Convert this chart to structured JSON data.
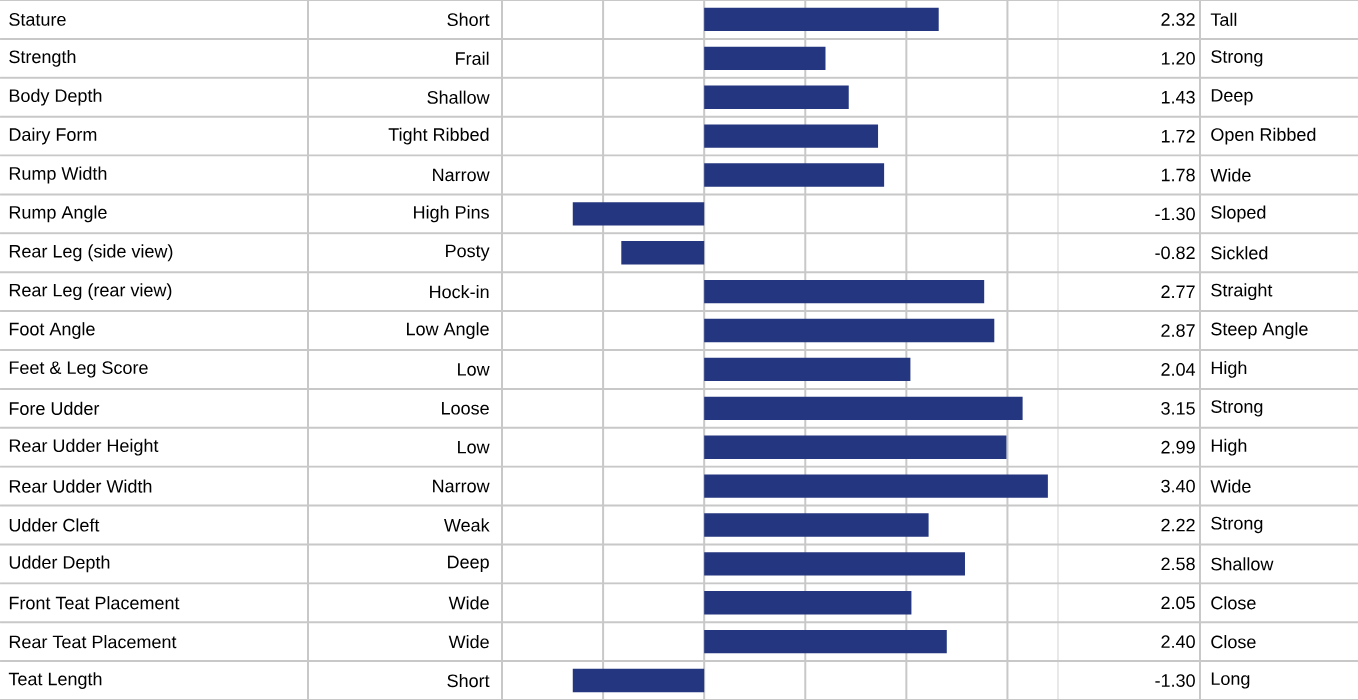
{
  "chart_data": {
    "type": "bar",
    "orientation": "horizontal",
    "color": "#24367f",
    "categories": [
      "Stature",
      "Strength",
      "Body Depth",
      "Dairy Form",
      "Rump Width",
      "Rump Angle",
      "Rear Leg (side view)",
      "Rear Leg (rear view)",
      "Foot Angle",
      "Feet & Leg Score",
      "Fore Udder",
      "Rear Udder Height",
      "Rear Udder Width",
      "Udder Cleft",
      "Udder Depth",
      "Front Teat Placement",
      "Rear Teat Placement",
      "Teat Length"
    ],
    "values": [
      2.32,
      1.2,
      1.43,
      1.72,
      1.78,
      -1.3,
      -0.82,
      2.77,
      2.87,
      2.04,
      3.15,
      2.99,
      3.4,
      2.22,
      2.58,
      2.05,
      2.4,
      -1.3
    ],
    "value_labels": [
      "2.32",
      "1.20",
      "1.43",
      "1.72",
      "1.78",
      "-1.30",
      "-0.82",
      "2.77",
      "2.87",
      "2.04",
      "3.15",
      "2.99",
      "3.40",
      "2.22",
      "2.58",
      "2.05",
      "2.40",
      "-1.30"
    ],
    "annotations": [
      "Short",
      "Tall",
      "Frail",
      "Strong",
      "Shallow",
      "Deep",
      "Tight Ribbed",
      "Open Ribbed",
      "Narrow",
      "Wide",
      "High Pins",
      "Sloped",
      "Posty",
      "Sickled",
      "Hock-in",
      "Straight",
      "Low Angle",
      "Steep Angle",
      "Low",
      "High",
      "Loose",
      "Strong",
      "Low",
      "High",
      "Narrow",
      "Wide",
      "Weak",
      "Strong",
      "Deep",
      "Shallow",
      "Wide",
      "Close",
      "Wide",
      "Close",
      "Short",
      "Long"
    ],
    "xlim": [
      -2,
      3.5
    ],
    "xticks": [
      {
        "value": -2,
        "label": null
      },
      {
        "value": -1,
        "label": null
      },
      {
        "value": 0,
        "label": null
      },
      {
        "value": 1,
        "label": null
      },
      {
        "value": 2,
        "label": null
      },
      {
        "value": 3,
        "label": null
      }
    ],
    "grid": "x",
    "tick_labels": "y"
  }
}
